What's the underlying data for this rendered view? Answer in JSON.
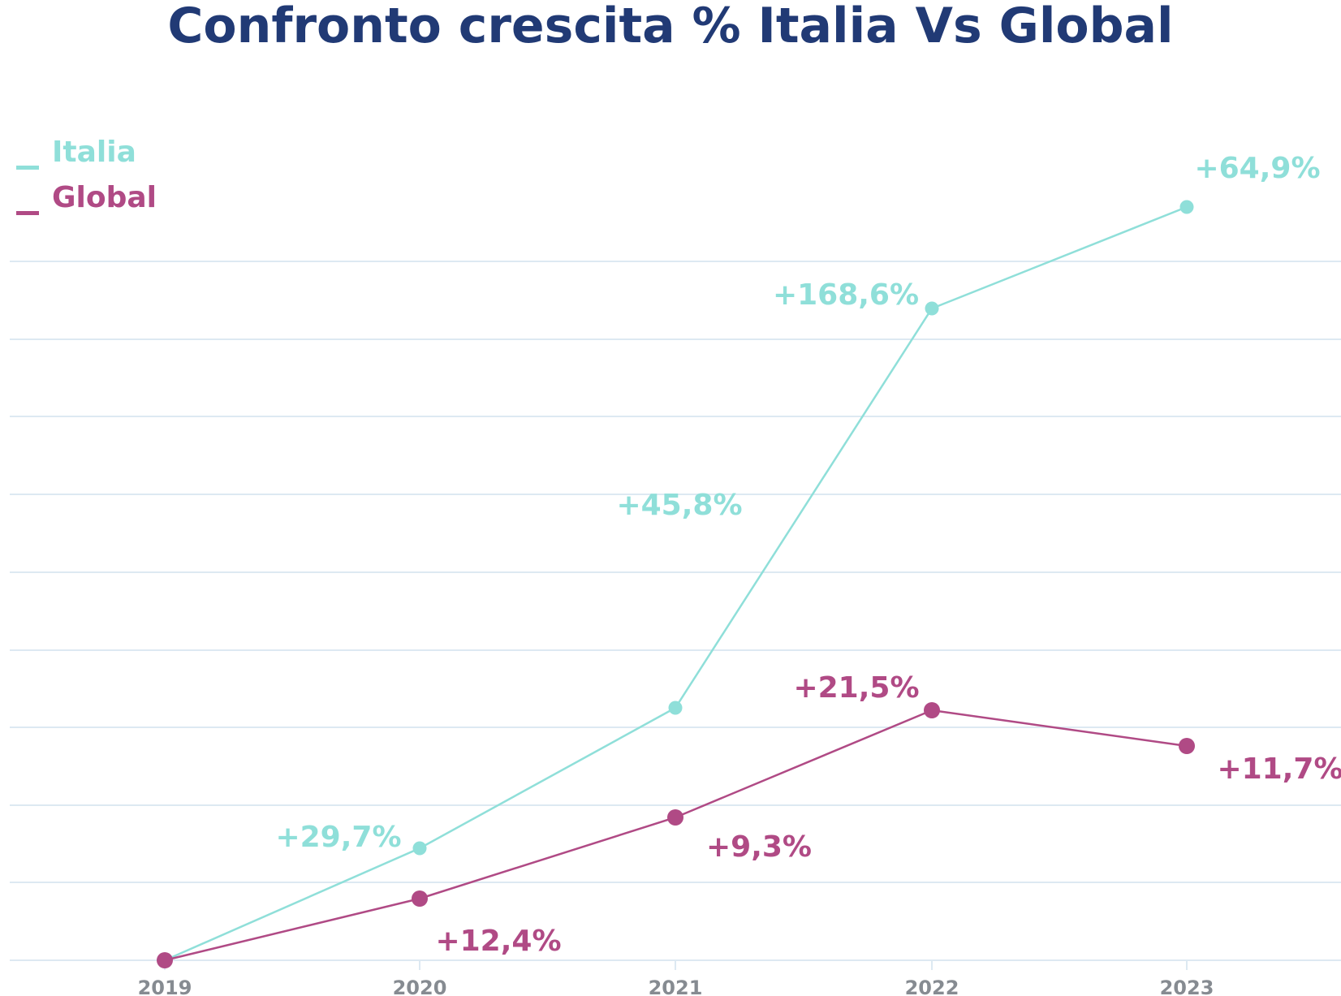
{
  "chart_data": {
    "type": "line",
    "title": "Confronto crescita % Italia Vs Global",
    "x": [
      "2019",
      "2020",
      "2021",
      "2022",
      "2023"
    ],
    "series": [
      {
        "name": "Italia",
        "color": "#8fdfd9",
        "values": [
          0,
          29.7,
          45.8,
          168.6,
          64.9
        ],
        "labels": [
          "",
          "+29,7%",
          "+45,8%",
          "+168,6%",
          "+64,9%"
        ]
      },
      {
        "name": "Global",
        "color": "#b04a85",
        "values": [
          0,
          12.4,
          9.3,
          21.5,
          11.7
        ],
        "labels": [
          "",
          "+12,4%",
          "+9,3%",
          "+21,5%",
          "+11,7%"
        ]
      }
    ],
    "xlabel": "",
    "ylabel": "",
    "grid": true,
    "y_axis_labels_shown": false,
    "legend_position": "top-left"
  }
}
